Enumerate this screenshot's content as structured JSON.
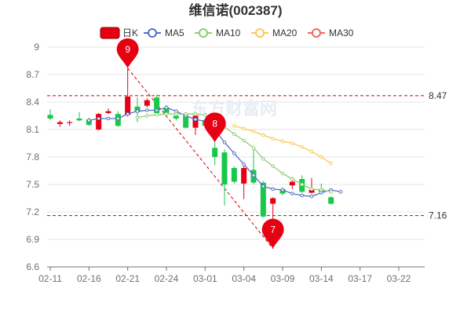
{
  "chart_data": {
    "type": "candlestick",
    "title": "维信诺(002387)",
    "legend": [
      "日K",
      "MA5",
      "MA10",
      "MA20",
      "MA30"
    ],
    "colors": {
      "up": "#e60012",
      "down": "#19c84b",
      "ma5": "#5470c6",
      "ma10": "#91cc75",
      "ma20": "#fac858",
      "ma30": "#ee6666",
      "ref_line": "#cc0000",
      "trend_line": "#cc0000",
      "grid": "#e6e6e6"
    },
    "categories": [
      "02-11",
      "02-12",
      "02-13",
      "02-14",
      "02-15",
      "02-16",
      "02-19",
      "02-20",
      "02-21",
      "02-22",
      "02-23",
      "02-24",
      "02-25",
      "02-26",
      "02-27",
      "02-28",
      "03-01",
      "03-02",
      "03-03",
      "03-04",
      "03-05",
      "03-06",
      "03-07",
      "03-08",
      "03-09",
      "03-10",
      "03-11",
      "03-12",
      "03-13",
      "03-14",
      "03-15",
      "03-16",
      "03-17",
      "03-18",
      "03-19",
      "03-20",
      "03-21",
      "03-22",
      "03-23",
      "03-24"
    ],
    "x_tick_labels": [
      "02-11",
      "02-16",
      "02-21",
      "02-24",
      "03-01",
      "03-04",
      "03-09",
      "03-14",
      "03-17",
      "03-22"
    ],
    "x_tick_indices": [
      0,
      4,
      8,
      12,
      16,
      20,
      24,
      28,
      32,
      36
    ],
    "y_ticks": [
      9,
      8.7,
      8.4,
      8.1,
      7.8,
      7.5,
      7.2,
      6.9,
      6.6
    ],
    "ylim": [
      6.6,
      9.0
    ],
    "ohlc": [
      {
        "i": 0,
        "open": 8.26,
        "close": 8.22,
        "high": 8.32,
        "low": 8.2
      },
      {
        "i": 1,
        "open": 8.16,
        "close": 8.18,
        "high": 8.2,
        "low": 8.13
      },
      {
        "i": 2,
        "open": 8.17,
        "close": 8.18,
        "high": 8.2,
        "low": 8.14
      },
      {
        "i": 3,
        "open": 8.22,
        "close": 8.2,
        "high": 8.29,
        "low": 8.19
      },
      {
        "i": 4,
        "open": 8.21,
        "close": 8.15,
        "high": 8.23,
        "low": 8.14
      },
      {
        "i": 5,
        "open": 8.1,
        "close": 8.27,
        "high": 8.28,
        "low": 8.09
      },
      {
        "i": 6,
        "open": 8.28,
        "close": 8.3,
        "high": 8.33,
        "low": 8.27
      },
      {
        "i": 7,
        "open": 8.27,
        "close": 8.14,
        "high": 8.3,
        "low": 8.13
      },
      {
        "i": 8,
        "open": 8.26,
        "close": 8.46,
        "high": 8.77,
        "low": 8.24
      },
      {
        "i": 9,
        "open": 8.35,
        "close": 8.29,
        "high": 8.45,
        "low": 8.18
      },
      {
        "i": 10,
        "open": 8.36,
        "close": 8.42,
        "high": 8.44,
        "low": 8.34
      },
      {
        "i": 11,
        "open": 8.45,
        "close": 8.28,
        "high": 8.48,
        "low": 8.26
      },
      {
        "i": 12,
        "open": 8.34,
        "close": 8.28,
        "high": 8.37,
        "low": 8.25
      },
      {
        "i": 13,
        "open": 8.25,
        "close": 8.22,
        "high": 8.28,
        "low": 8.2
      },
      {
        "i": 14,
        "open": 8.25,
        "close": 8.12,
        "high": 8.27,
        "low": 8.11
      },
      {
        "i": 15,
        "open": 8.12,
        "close": 8.25,
        "high": 8.26,
        "low": 8.04
      },
      {
        "i": 16,
        "open": 8.2,
        "close": 8.14,
        "high": 8.22,
        "low": 8.12
      },
      {
        "i": 17,
        "open": 7.9,
        "close": 7.8,
        "high": 7.96,
        "low": 7.71
      },
      {
        "i": 18,
        "open": 7.85,
        "close": 7.5,
        "high": 7.88,
        "low": 7.27
      },
      {
        "i": 19,
        "open": 7.68,
        "close": 7.53,
        "high": 7.7,
        "low": 7.51
      },
      {
        "i": 20,
        "open": 7.51,
        "close": 7.68,
        "high": 7.7,
        "low": 7.34
      },
      {
        "i": 21,
        "open": 7.66,
        "close": 7.52,
        "high": 7.88,
        "low": 7.5
      },
      {
        "i": 22,
        "open": 7.52,
        "close": 7.15,
        "high": 7.54,
        "low": 7.14
      },
      {
        "i": 23,
        "open": 7.29,
        "close": 7.35,
        "high": 7.36,
        "low": 6.8
      },
      {
        "i": 24,
        "open": 7.45,
        "close": 7.4,
        "high": 7.47,
        "low": 7.38
      },
      {
        "i": 25,
        "open": 7.49,
        "close": 7.53,
        "high": 7.58,
        "low": 7.45
      },
      {
        "i": 26,
        "open": 7.56,
        "close": 7.42,
        "high": 7.6,
        "low": 7.41
      },
      {
        "i": 27,
        "open": 7.41,
        "close": 7.44,
        "high": 7.57,
        "low": 7.4
      },
      {
        "i": 28,
        "open": 7.45,
        "close": 7.42,
        "high": 7.51,
        "low": 7.39
      },
      {
        "i": 29,
        "open": 7.36,
        "close": 7.29,
        "high": 7.37,
        "low": 7.28
      }
    ],
    "ma_series": [
      {
        "name": "MA5",
        "values": [
          [
            4,
            8.2
          ],
          [
            5,
            8.22
          ],
          [
            6,
            8.22
          ],
          [
            7,
            8.22
          ],
          [
            8,
            8.27
          ],
          [
            9,
            8.3
          ],
          [
            10,
            8.31
          ],
          [
            11,
            8.31
          ],
          [
            12,
            8.34
          ],
          [
            13,
            8.3
          ],
          [
            14,
            8.25
          ],
          [
            15,
            8.21
          ],
          [
            16,
            8.19
          ],
          [
            17,
            8.1
          ],
          [
            18,
            7.96
          ],
          [
            19,
            7.84
          ],
          [
            20,
            7.72
          ],
          [
            21,
            7.6
          ],
          [
            22,
            7.48
          ],
          [
            23,
            7.45
          ],
          [
            24,
            7.44
          ],
          [
            25,
            7.4
          ],
          [
            26,
            7.38
          ],
          [
            27,
            7.37
          ],
          [
            28,
            7.41
          ],
          [
            29,
            7.44
          ],
          [
            30,
            7.42
          ]
        ]
      },
      {
        "name": "MA10",
        "values": [
          [
            9,
            8.23
          ],
          [
            10,
            8.25
          ],
          [
            11,
            8.26
          ],
          [
            12,
            8.27
          ],
          [
            13,
            8.27
          ],
          [
            14,
            8.27
          ],
          [
            15,
            8.27
          ],
          [
            16,
            8.26
          ],
          [
            17,
            8.2
          ],
          [
            18,
            8.13
          ],
          [
            19,
            8.05
          ],
          [
            20,
            7.98
          ],
          [
            21,
            7.9
          ],
          [
            22,
            7.78
          ],
          [
            23,
            7.7
          ],
          [
            24,
            7.62
          ],
          [
            25,
            7.56
          ],
          [
            26,
            7.5
          ],
          [
            27,
            7.45
          ],
          [
            28,
            7.44
          ],
          [
            29,
            7.42
          ]
        ]
      },
      {
        "name": "MA20",
        "values": [
          [
            19,
            8.14
          ],
          [
            20,
            8.11
          ],
          [
            21,
            8.08
          ],
          [
            22,
            8.04
          ],
          [
            23,
            8.0
          ],
          [
            24,
            7.97
          ],
          [
            25,
            7.95
          ],
          [
            26,
            7.91
          ],
          [
            27,
            7.86
          ],
          [
            28,
            7.8
          ],
          [
            29,
            7.73
          ]
        ]
      },
      {
        "name": "MA30",
        "values": []
      }
    ],
    "ref_lines": [
      {
        "value": 8.47,
        "label": "8.47"
      },
      {
        "value": 7.16,
        "label": "7.16"
      }
    ],
    "pins": [
      {
        "i": 8,
        "value": 8.77,
        "label": "9"
      },
      {
        "i": 17,
        "value": 7.96,
        "label": "8"
      },
      {
        "i": 23,
        "value": 6.8,
        "label": "7"
      }
    ],
    "trend_line": {
      "from_i": 8,
      "from_value": 8.77,
      "to_i": 23,
      "to_value": 6.8
    },
    "watermark": "东方财富网"
  }
}
